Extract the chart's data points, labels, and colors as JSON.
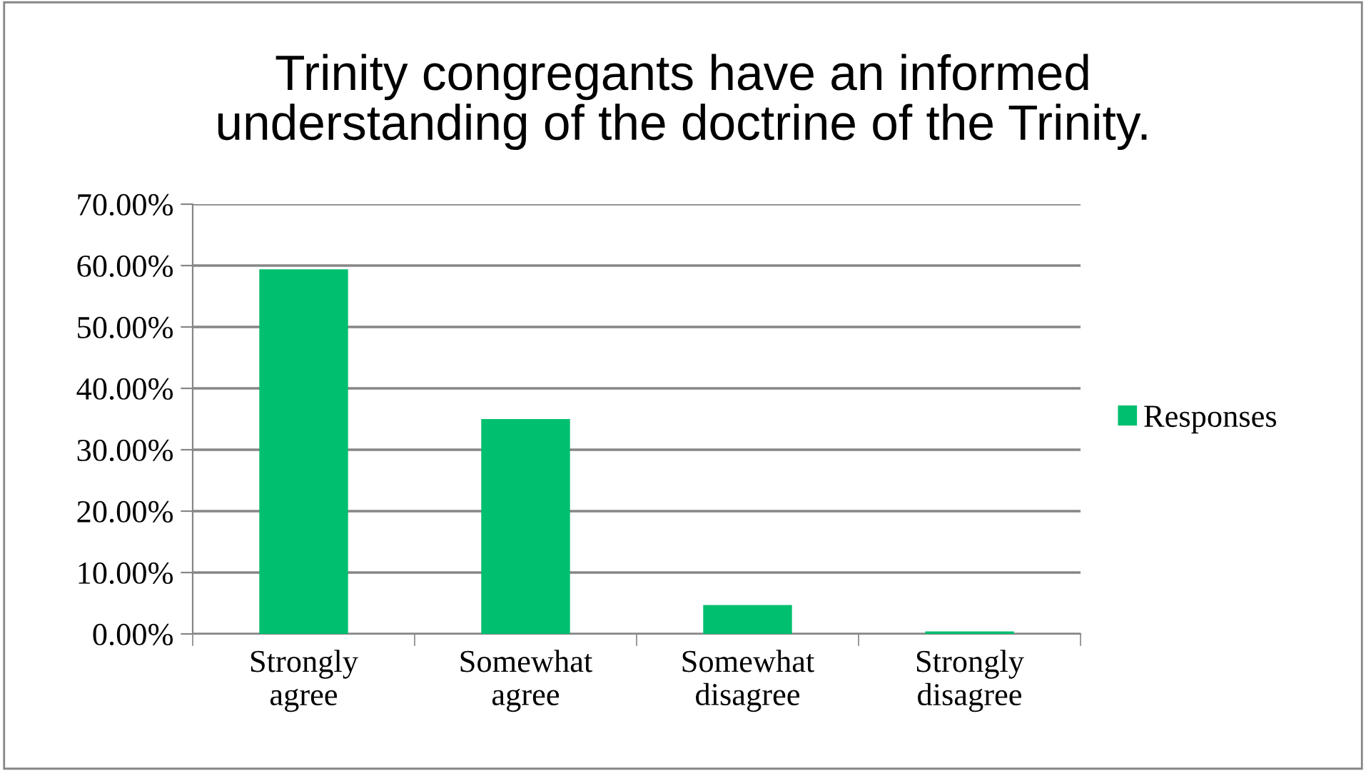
{
  "chart_data": {
    "type": "bar",
    "title": "Trinity congregants have an informed\nunderstanding of the doctrine of the Trinity.",
    "categories": [
      "Strongly\nagree",
      "Somewhat\nagree",
      "Somewhat\ndisagree",
      "Strongly\ndisagree"
    ],
    "series": [
      {
        "name": "Responses",
        "color": "#00bf6f",
        "values": [
          59.4,
          35.0,
          4.7,
          0.4
        ]
      }
    ],
    "ylim": [
      0,
      70
    ],
    "yticks": [
      {
        "value": 0,
        "label": "0.00%"
      },
      {
        "value": 10,
        "label": "10.00%"
      },
      {
        "value": 20,
        "label": "20.00%"
      },
      {
        "value": 30,
        "label": "30.00%"
      },
      {
        "value": 40,
        "label": "40.00%"
      },
      {
        "value": 50,
        "label": "50.00%"
      },
      {
        "value": 60,
        "label": "60.00%"
      },
      {
        "value": 70,
        "label": "70.00%"
      }
    ],
    "grid": "y",
    "legend": "right"
  }
}
